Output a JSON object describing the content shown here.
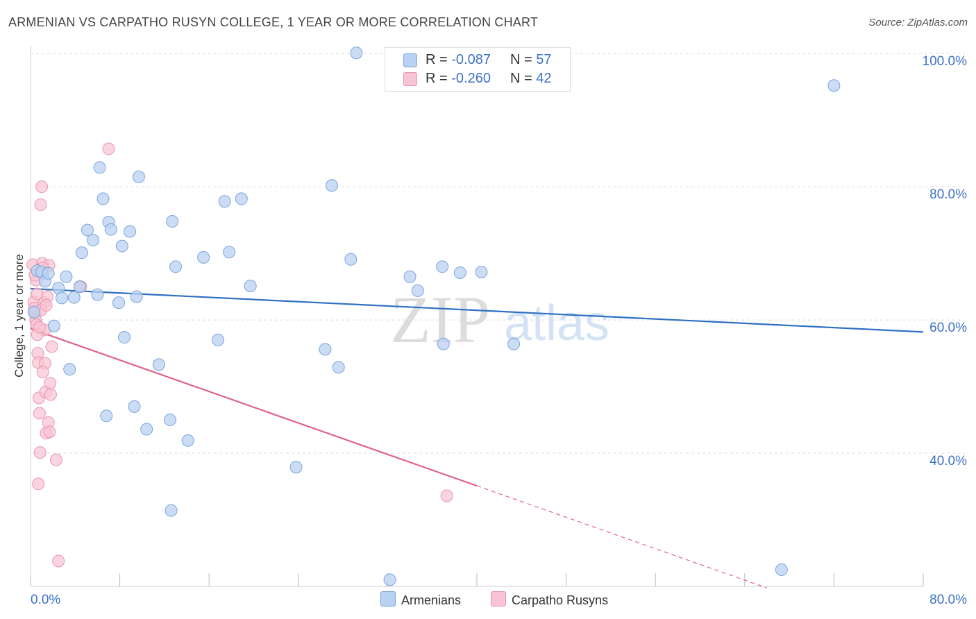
{
  "title": "ARMENIAN VS CARPATHO RUSYN COLLEGE, 1 YEAR OR MORE CORRELATION CHART",
  "source": "Source: ZipAtlas.com",
  "watermark": {
    "zip": "ZIP",
    "atlas": "atlas"
  },
  "legend": {
    "r_label": "R =",
    "n_label": "N =",
    "armenians": {
      "r": "-0.087",
      "n": "57"
    },
    "rusyns": {
      "r": "-0.260",
      "n": "42"
    }
  },
  "colors": {
    "blue_fill": "#b9d1f2",
    "blue_stroke": "#7aa4dc",
    "blue_line": "#2f6fc4",
    "pink_fill": "#f8c3d3",
    "pink_stroke": "#e995b0",
    "pink_line": "#e0628e",
    "axis_text": "#3b72c6"
  },
  "chart_data": {
    "type": "scatter",
    "title": "ARMENIAN VS CARPATHO RUSYN COLLEGE, 1 YEAR OR MORE CORRELATION CHART",
    "xlabel": "",
    "ylabel": "College, 1 year or more",
    "xlim": [
      0,
      80
    ],
    "ylim": [
      20,
      102
    ],
    "x_tick_labels": [
      "0.0%",
      "80.0%"
    ],
    "y_ticks": [
      {
        "value": 100,
        "label": "100.0%"
      },
      {
        "value": 80,
        "label": "80.0%"
      },
      {
        "value": 60,
        "label": "60.0%"
      },
      {
        "value": 40,
        "label": "40.0%"
      }
    ],
    "series": [
      {
        "name": "Armenians",
        "points": [
          [
            0.3,
            61.2
          ],
          [
            0.6,
            67.4
          ],
          [
            1.0,
            67.2
          ],
          [
            1.3,
            65.8
          ],
          [
            1.6,
            67.0
          ],
          [
            2.1,
            59.1
          ],
          [
            2.5,
            64.8
          ],
          [
            2.8,
            63.3
          ],
          [
            3.2,
            66.5
          ],
          [
            3.5,
            52.6
          ],
          [
            3.9,
            63.4
          ],
          [
            4.4,
            65.0
          ],
          [
            4.6,
            70.1
          ],
          [
            5.1,
            73.5
          ],
          [
            5.6,
            72.0
          ],
          [
            6.0,
            63.8
          ],
          [
            6.2,
            82.9
          ],
          [
            6.5,
            78.2
          ],
          [
            6.8,
            45.6
          ],
          [
            7.0,
            74.7
          ],
          [
            7.2,
            73.6
          ],
          [
            7.9,
            62.6
          ],
          [
            8.2,
            71.1
          ],
          [
            8.9,
            73.3
          ],
          [
            8.4,
            57.4
          ],
          [
            9.5,
            63.5
          ],
          [
            9.7,
            81.5
          ],
          [
            9.3,
            47.0
          ],
          [
            10.4,
            43.6
          ],
          [
            11.5,
            53.3
          ],
          [
            12.7,
            74.8
          ],
          [
            13.0,
            68.0
          ],
          [
            12.5,
            45.0
          ],
          [
            12.6,
            31.4
          ],
          [
            14.1,
            41.9
          ],
          [
            15.5,
            69.4
          ],
          [
            16.8,
            57.0
          ],
          [
            17.4,
            77.8
          ],
          [
            17.8,
            70.2
          ],
          [
            18.9,
            78.2
          ],
          [
            19.7,
            65.1
          ],
          [
            23.8,
            37.9
          ],
          [
            26.4,
            55.6
          ],
          [
            27.0,
            80.2
          ],
          [
            27.6,
            52.9
          ],
          [
            28.7,
            69.1
          ],
          [
            29.2,
            100.1
          ],
          [
            32.2,
            21.0
          ],
          [
            34.0,
            66.5
          ],
          [
            34.7,
            64.4
          ],
          [
            36.9,
            68.0
          ],
          [
            37.0,
            56.4
          ],
          [
            38.5,
            67.1
          ],
          [
            40.4,
            67.2
          ],
          [
            43.3,
            56.4
          ],
          [
            67.3,
            22.5
          ],
          [
            72.0,
            95.2
          ]
        ]
      },
      {
        "name": "Carpatho Rusyns",
        "points": [
          [
            0.2,
            68.3
          ],
          [
            0.3,
            62.7
          ],
          [
            0.35,
            61.8
          ],
          [
            0.4,
            61.0
          ],
          [
            0.45,
            60.0
          ],
          [
            0.5,
            66.0
          ],
          [
            0.55,
            59.3
          ],
          [
            0.6,
            63.9
          ],
          [
            0.65,
            55.0
          ],
          [
            0.7,
            53.6
          ],
          [
            0.75,
            48.3
          ],
          [
            0.8,
            46.0
          ],
          [
            0.85,
            40.1
          ],
          [
            0.7,
            35.4
          ],
          [
            0.9,
            77.3
          ],
          [
            1.0,
            80.0
          ],
          [
            1.05,
            68.5
          ],
          [
            1.1,
            67.0
          ],
          [
            1.2,
            62.6
          ],
          [
            1.25,
            58.5
          ],
          [
            1.3,
            53.5
          ],
          [
            1.35,
            49.2
          ],
          [
            1.4,
            43.0
          ],
          [
            1.5,
            63.5
          ],
          [
            1.6,
            44.6
          ],
          [
            1.65,
            68.2
          ],
          [
            1.7,
            43.2
          ],
          [
            1.75,
            50.5
          ],
          [
            1.8,
            48.8
          ],
          [
            1.9,
            56.0
          ],
          [
            2.3,
            39.0
          ],
          [
            2.5,
            23.8
          ],
          [
            4.5,
            65.0
          ],
          [
            7.0,
            85.7
          ],
          [
            1.1,
            67.8
          ],
          [
            0.95,
            61.5
          ],
          [
            0.6,
            57.8
          ],
          [
            1.4,
            62.2
          ],
          [
            1.1,
            52.2
          ],
          [
            0.4,
            66.7
          ],
          [
            0.8,
            58.9
          ],
          [
            37.3,
            33.6
          ]
        ]
      }
    ],
    "trendlines": [
      {
        "series": "Armenians",
        "x": [
          0,
          80
        ],
        "y": [
          64.7,
          58.2
        ]
      },
      {
        "series": "Carpatho Rusyns",
        "x": [
          0,
          40
        ],
        "y": [
          58.7,
          35.1
        ],
        "dashed_extension_to_x": 66
      }
    ]
  }
}
